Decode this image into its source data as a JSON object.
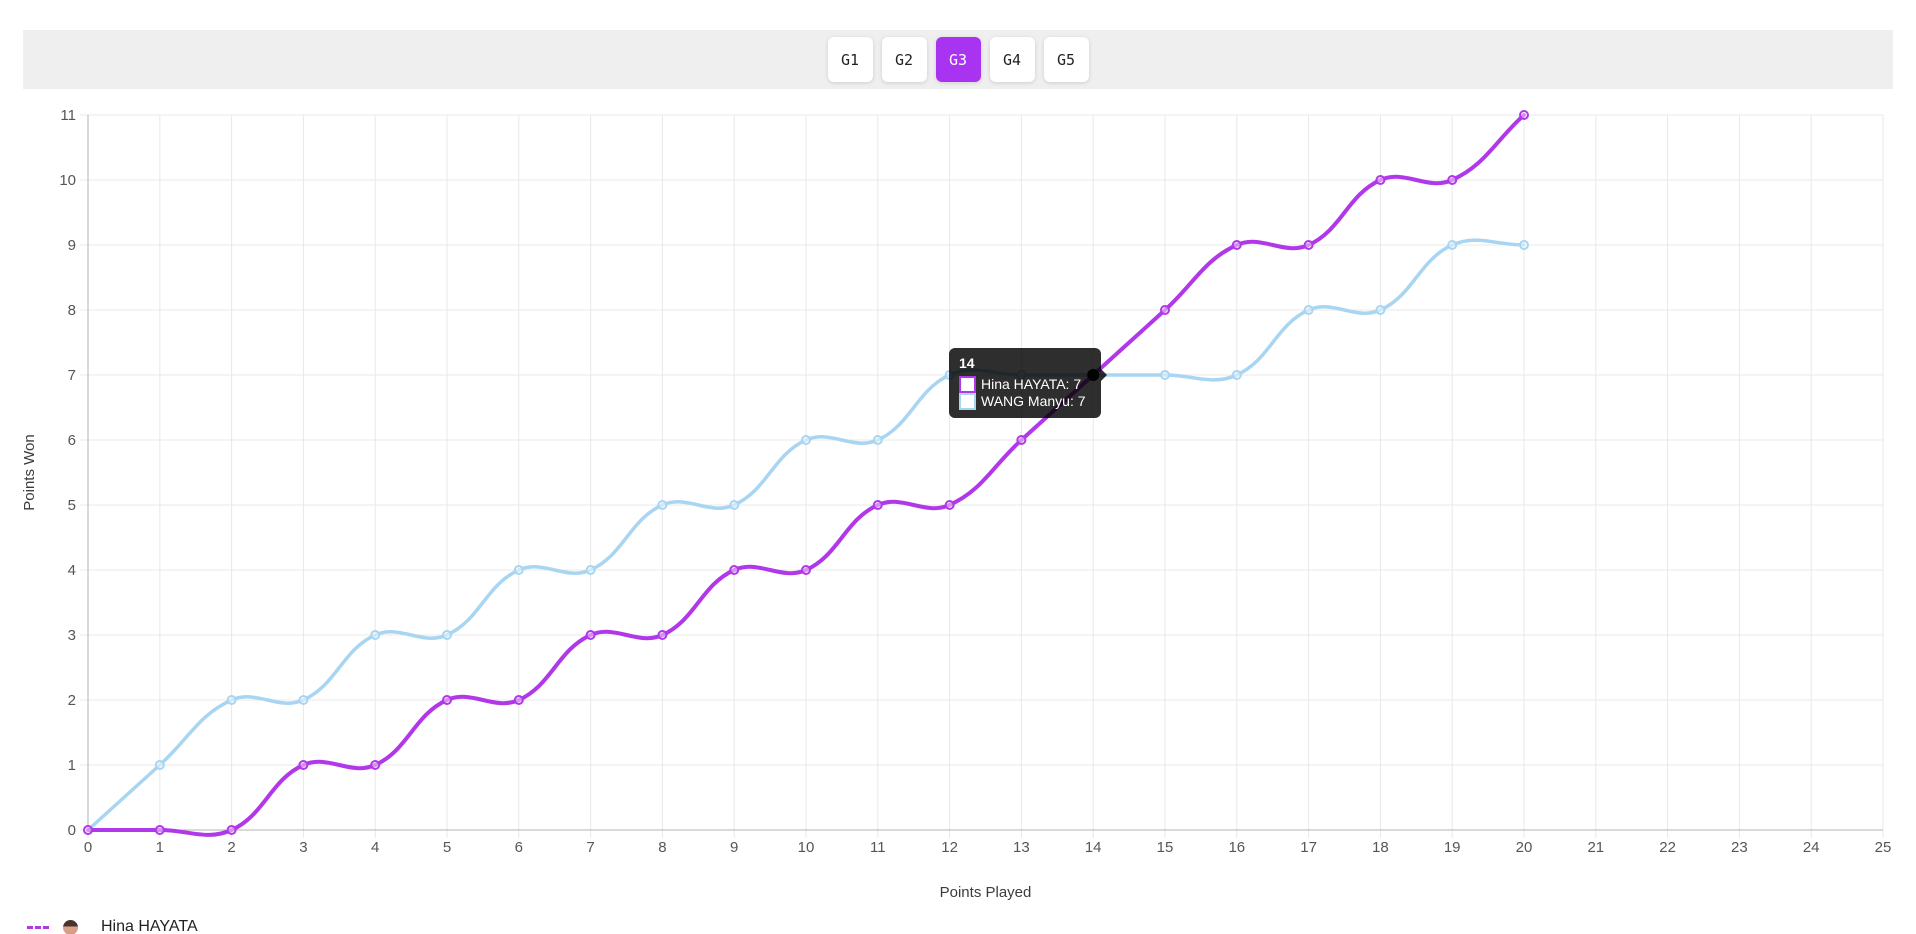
{
  "tabs": {
    "items": [
      {
        "label": "G1",
        "selected": false
      },
      {
        "label": "G2",
        "selected": false
      },
      {
        "label": "G3",
        "selected": true
      },
      {
        "label": "G4",
        "selected": false
      },
      {
        "label": "G5",
        "selected": false
      }
    ]
  },
  "chart_data": {
    "type": "line",
    "x": [
      0,
      1,
      2,
      3,
      4,
      5,
      6,
      7,
      8,
      9,
      10,
      11,
      12,
      13,
      14,
      15,
      16,
      17,
      18,
      19,
      20
    ],
    "series": [
      {
        "name": "Hina HAYATA",
        "color": "#b138e8",
        "values": [
          0,
          0,
          0,
          1,
          1,
          2,
          2,
          3,
          3,
          4,
          4,
          5,
          5,
          6,
          7,
          8,
          9,
          9,
          10,
          10,
          11
        ]
      },
      {
        "name": "WANG Manyu",
        "color": "#a8d5f2",
        "values": [
          0,
          1,
          2,
          2,
          3,
          3,
          4,
          4,
          5,
          5,
          6,
          6,
          7,
          7,
          7,
          7,
          7,
          8,
          8,
          9,
          9
        ]
      }
    ],
    "xlabel": "Points Played",
    "ylabel": "Points Won",
    "xlim": [
      0,
      25
    ],
    "ylim": [
      0,
      11
    ],
    "x_tick_step": 1,
    "y_tick_step": 1,
    "grid": true,
    "legend_position": "bottom-left",
    "highlight_point": {
      "x": 14,
      "y": 7,
      "color": "#0d0d0d"
    }
  },
  "tooltip": {
    "title": "14",
    "rows": [
      {
        "text": "Hina HAYATA: 7",
        "color": "#b138e8"
      },
      {
        "text": "WANG Manyu: 7",
        "color": "#a8d5f2"
      }
    ]
  },
  "legend": {
    "items": [
      {
        "label": "Hina HAYATA",
        "color": "#b138e8"
      }
    ]
  },
  "colors": {
    "accent": "#a833f0",
    "hina": "#b138e8",
    "wang": "#a8d5f2",
    "grid": "#e8e8e8",
    "axis_border": "#b3b3b3",
    "tick_text": "#565656",
    "axis_title_text": "#3c3c3c",
    "tab_bar_bg": "#efefef"
  }
}
